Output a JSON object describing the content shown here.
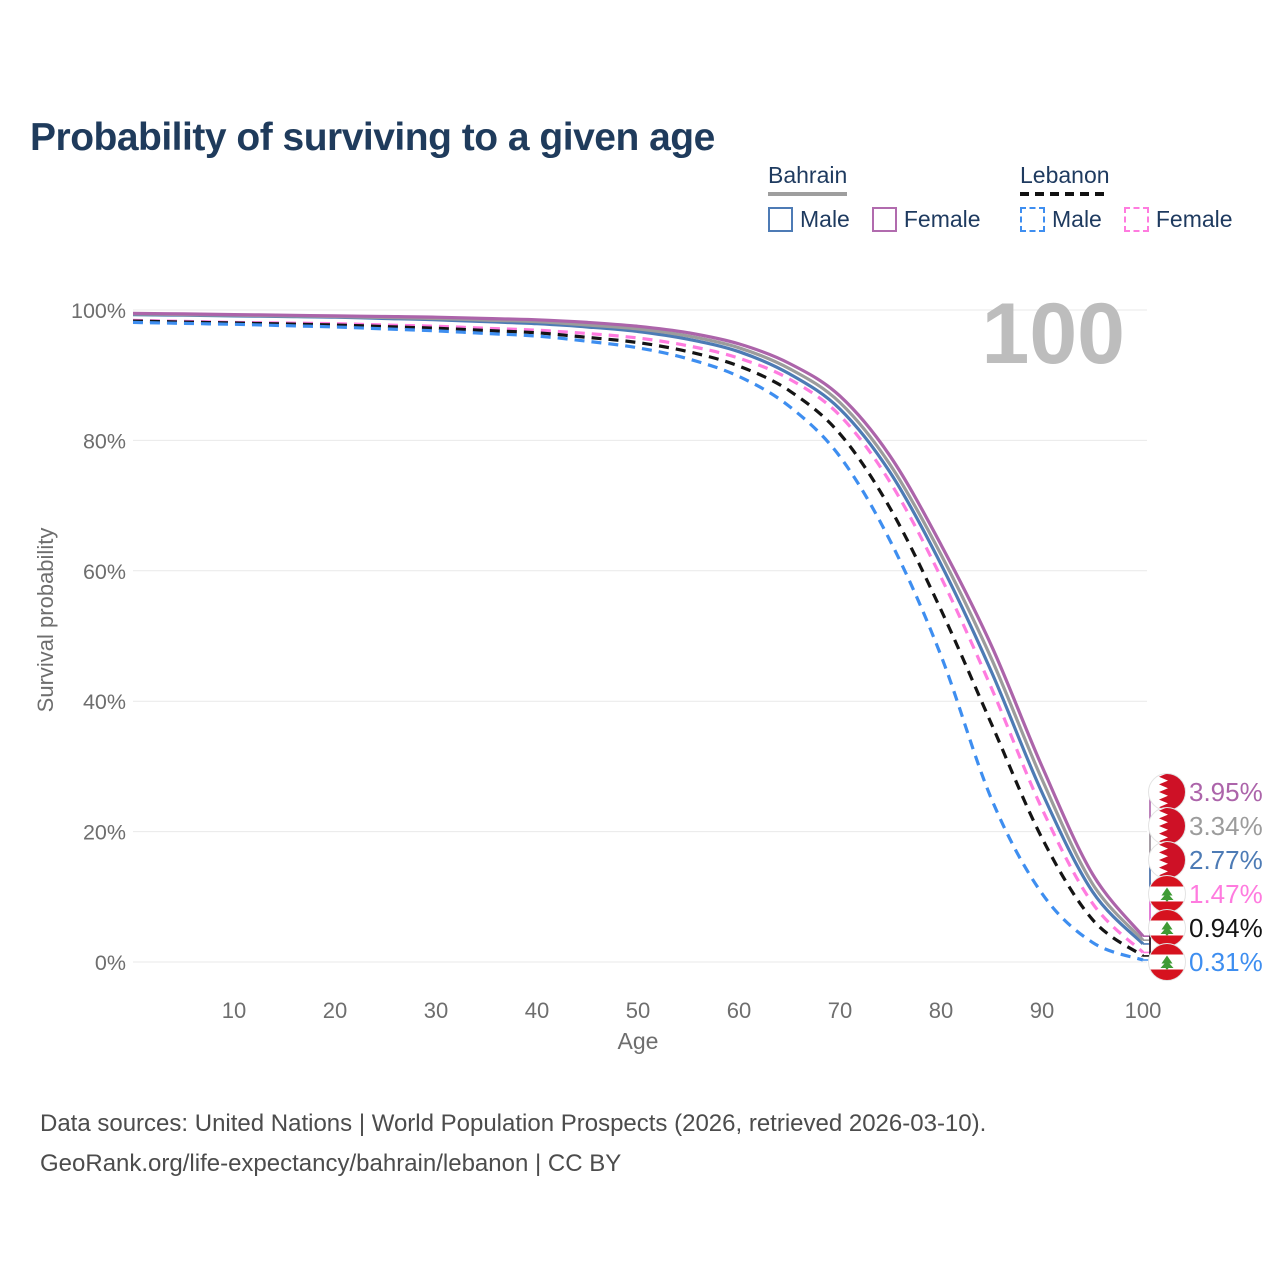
{
  "title": "Probability of surviving to a given age",
  "age_indicator": "100",
  "legend": {
    "groups": [
      {
        "country": "Bahrain",
        "line_style": "solid",
        "items": [
          {
            "label": "Male",
            "color": "#4d7bb5"
          },
          {
            "label": "Female",
            "color": "#b16bae"
          }
        ]
      },
      {
        "country": "Lebanon",
        "line_style": "dashed",
        "items": [
          {
            "label": "Male",
            "color": "#3e8ef0"
          },
          {
            "label": "Female",
            "color": "#ff7bdf"
          }
        ]
      }
    ]
  },
  "axes": {
    "x": {
      "title": "Age",
      "min": 0,
      "max": 100,
      "ticks": [
        10,
        20,
        30,
        40,
        50,
        60,
        70,
        80,
        90,
        100
      ]
    },
    "y": {
      "title": "Survival probability",
      "min": 0,
      "max": 100,
      "tick_values": [
        0,
        20,
        40,
        60,
        80,
        100
      ],
      "tick_labels": [
        "0%",
        "20%",
        "40%",
        "60%",
        "80%",
        "100%"
      ]
    }
  },
  "chart_data": {
    "type": "line",
    "title": "Probability of surviving to a given age",
    "xlabel": "Age",
    "ylabel": "Survival probability",
    "xlim": [
      0,
      100
    ],
    "ylim": [
      0,
      100
    ],
    "grid": "horizontal",
    "x_ages": [
      0,
      5,
      10,
      15,
      20,
      25,
      30,
      35,
      40,
      45,
      50,
      55,
      60,
      65,
      70,
      75,
      80,
      85,
      90,
      95,
      100
    ],
    "series": [
      {
        "id": "bahrain-male",
        "country": "Bahrain",
        "sex_label": "Male",
        "color": "#4d7bb5",
        "dash": null,
        "values": [
          99.3,
          99.2,
          99.1,
          99.0,
          98.9,
          98.7,
          98.5,
          98.2,
          97.9,
          97.4,
          96.7,
          95.5,
          93.6,
          90.2,
          84.8,
          75.0,
          61.0,
          44.5,
          26.0,
          10.8,
          2.77
        ],
        "end_label": "2.77%",
        "flag": "bahrain"
      },
      {
        "id": "bahrain-total",
        "country": "Bahrain",
        "sex_label": "",
        "color": "#9c9c9c",
        "dash": null,
        "values": [
          99.4,
          99.3,
          99.2,
          99.1,
          99.0,
          98.85,
          98.7,
          98.45,
          98.2,
          97.7,
          97.1,
          96.0,
          94.2,
          91.0,
          85.8,
          76.2,
          62.5,
          46.5,
          28.0,
          12.0,
          3.34
        ],
        "end_label": "3.34%",
        "flag": "bahrain"
      },
      {
        "id": "bahrain-female",
        "country": "Bahrain",
        "sex_label": "Female",
        "color": "#ac64aa",
        "dash": null,
        "values": [
          99.5,
          99.4,
          99.3,
          99.2,
          99.1,
          99.0,
          98.9,
          98.7,
          98.5,
          98.1,
          97.5,
          96.5,
          94.8,
          91.8,
          86.8,
          77.5,
          64.0,
          48.5,
          30.0,
          13.5,
          3.95
        ],
        "end_label": "3.95%",
        "flag": "bahrain"
      },
      {
        "id": "lebanon-female",
        "country": "Lebanon",
        "sex_label": "Female",
        "color": "#ff7bdf",
        "dash": "10 7",
        "values": [
          98.4,
          98.25,
          98.1,
          98.0,
          97.9,
          97.7,
          97.5,
          97.2,
          96.9,
          96.4,
          95.7,
          94.5,
          92.6,
          89.4,
          83.8,
          73.5,
          59.0,
          42.0,
          23.5,
          9.0,
          1.47
        ],
        "end_label": "1.47%",
        "flag": "lebanon"
      },
      {
        "id": "lebanon-total",
        "country": "Lebanon",
        "sex_label": "",
        "color": "#141414",
        "dash": "10 7",
        "values": [
          98.3,
          98.15,
          98.0,
          97.85,
          97.7,
          97.45,
          97.2,
          96.85,
          96.5,
          95.8,
          95.0,
          93.6,
          91.4,
          87.6,
          81.0,
          69.5,
          54.0,
          36.5,
          19.0,
          6.5,
          0.94
        ],
        "end_label": "0.94%",
        "flag": "lebanon"
      },
      {
        "id": "lebanon-male",
        "country": "Lebanon",
        "sex_label": "Male",
        "color": "#3e8ef0",
        "dash": "10 7",
        "values": [
          98.1,
          97.95,
          97.8,
          97.6,
          97.4,
          97.1,
          96.8,
          96.4,
          96.0,
          95.2,
          94.2,
          92.5,
          89.8,
          85.2,
          77.5,
          64.5,
          47.0,
          25.0,
          10.5,
          3.0,
          0.31
        ],
        "end_label": "0.31%",
        "flag": "lebanon"
      }
    ],
    "end_labels_top_to_bottom": [
      "3.95%",
      "3.34%",
      "2.77%",
      "1.47%",
      "0.94%",
      "0.31%"
    ]
  },
  "footer": {
    "line1": "Data sources: United Nations | World Population Prospects (2026, retrieved 2026-03-10).",
    "line2": "GeoRank.org/life-expectancy/bahrain/lebanon | CC BY"
  },
  "colors": {
    "title": "#1f3b5c",
    "axis_text": "#6e6e6e",
    "gridline": "#e9e9e9",
    "watermark": "#bdbdbd",
    "bahrain_underline": "#9e9e9e",
    "lebanon_underline": "#111111",
    "bahrain_flag_red": "#ce1126",
    "lebanon_flag_red": "#d6121f",
    "lebanon_cedar_green": "#3f9b35"
  }
}
